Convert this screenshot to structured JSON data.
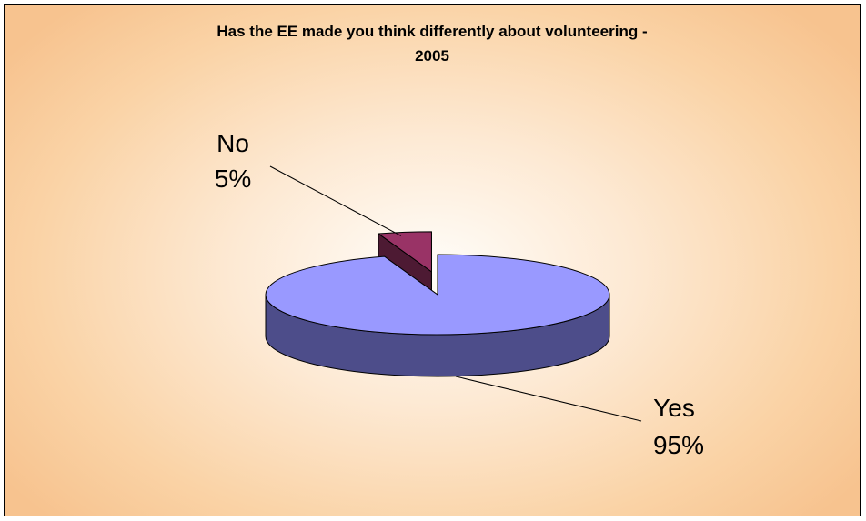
{
  "chart_data": {
    "type": "pie",
    "title_lines": [
      "Has the EE made you think differently about volunteering -",
      "2005"
    ],
    "categories": [
      "Yes",
      "No"
    ],
    "values": [
      95,
      5
    ],
    "value_labels": [
      "95%",
      "5%"
    ],
    "colors": {
      "Yes": {
        "top": "#9999ff",
        "side": "#4d4d8a"
      },
      "No": {
        "top": "#993366",
        "side": "#4d1a33"
      }
    },
    "style": "3d-exploded",
    "legend": "none"
  }
}
